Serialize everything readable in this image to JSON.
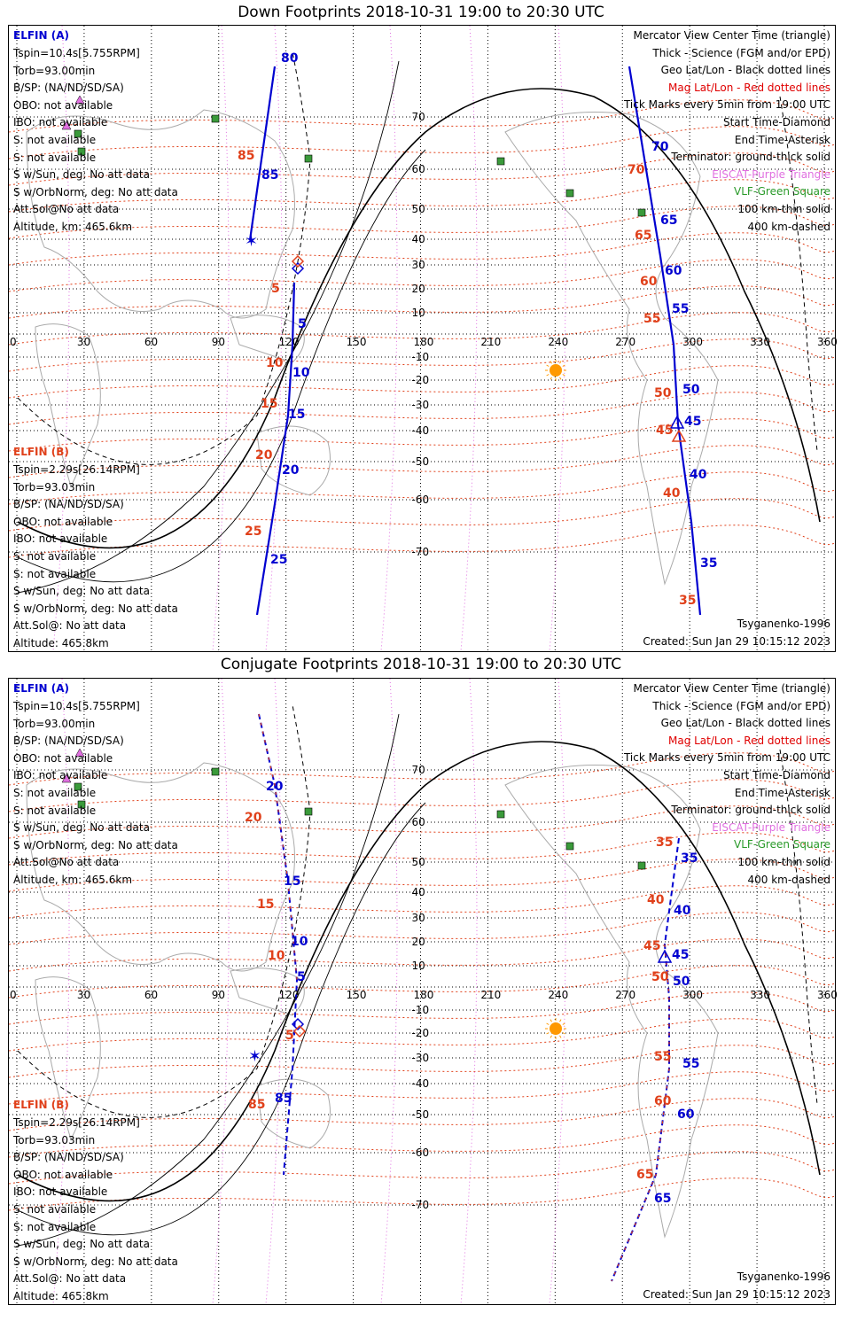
{
  "panels": [
    {
      "title": "Down Footprints 2018-10-31 19:00 to 20:30 UTC",
      "elfin_a": {
        "name": "ELFIN (A)",
        "lines": [
          "Tspin=10.4s[5.755RPM]",
          "Torb=93.00min",
          "B/SP: (NA/ND/SD/SA)",
          "OBO: not available",
          "IBO: not available",
          "S: not available",
          "S: not available",
          "S w/Sun, deg: No att data",
          "S w/OrbNorm, deg: No att data",
          "Att.Sol@No att data",
          "Altitude, km: 465.6km"
        ]
      },
      "elfin_b": {
        "name": "ELFIN (B)",
        "lines": [
          "Tspin=2.29s[26.14RPM]",
          "Torb=93.03min",
          "B/SP: (NA/ND/SD/SA)",
          "OBO: not available",
          "IBO: not available",
          "S: not available",
          "S: not available",
          "S w/Sun, deg: No att data",
          "S w/OrbNorm, deg: No att data",
          "Att.Sol@: No att data",
          "Altitude: 465.8km"
        ]
      },
      "legend": [
        "Mercator View Center Time (triangle)",
        "Thick - Science (FGM and/or EPD)",
        "Geo Lat/Lon - Black dotted lines",
        "Mag Lat/Lon - Red dotted lines",
        "Tick Marks every 5min from 19:00 UTC",
        "Start Time-Diamond",
        "End Time-Asterisk",
        "Terminator: ground-thick solid",
        "EISCAT-Purple Triangle",
        "VLF-Green Square",
        "100 km-thin solid",
        "400 km-dashed"
      ],
      "model": "Tsyganenko-1996",
      "created": "Created: Sun Jan 29 10:15:12 2023",
      "track_a_labels": [
        "80",
        "85",
        "5",
        "10",
        "15",
        "20",
        "25"
      ],
      "track_b_labels": [
        "85",
        "5",
        "10",
        "15",
        "20",
        "25"
      ],
      "track_a2_labels": [
        "70",
        "65",
        "60",
        "55",
        "50",
        "45",
        "40",
        "35"
      ],
      "track_b2_labels": [
        "70",
        "65",
        "60",
        "55",
        "50",
        "45",
        "40",
        "35"
      ]
    },
    {
      "title": "Conjugate Footprints 2018-10-31 19:00 to 20:30 UTC",
      "elfin_a": {
        "name": "ELFIN (A)",
        "lines": [
          "Tspin=10.4s[5.755RPM]",
          "Torb=93.00min",
          "B/SP: (NA/ND/SD/SA)",
          "OBO: not available",
          "IBO: not available",
          "S: not available",
          "S: not available",
          "S w/Sun, deg: No att data",
          "S w/OrbNorm, deg: No att data",
          "Att.Sol@No att data",
          "Altitude, km: 465.6km"
        ]
      },
      "elfin_b": {
        "name": "ELFIN (B)",
        "lines": [
          "Tspin=2.29s[26.14RPM]",
          "Torb=93.03min",
          "B/SP: (NA/ND/SD/SA)",
          "OBO: not available",
          "IBO: not available",
          "S: not available",
          "S: not available",
          "S w/Sun, deg: No att data",
          "S w/OrbNorm, deg: No att data",
          "Att.Sol@: No att data",
          "Altitude: 465.8km"
        ]
      },
      "legend": [
        "Mercator View Center Time (triangle)",
        "Thick - Science (FGM and/or EPD)",
        "Geo Lat/Lon - Black dotted lines",
        "Mag Lat/Lon - Red dotted lines",
        "Tick Marks every 5min from 19:00 UTC",
        "Start Time-Diamond",
        "End Time-Asterisk",
        "Terminator: ground-thick solid",
        "EISCAT-Purple Triangle",
        "VLF-Green Square",
        "100 km-thin solid",
        "400 km-dashed"
      ],
      "model": "Tsyganenko-1996",
      "created": "Created: Sun Jan 29 10:15:12 2023",
      "track_a_labels": [
        "20",
        "15",
        "10",
        "5",
        "85"
      ],
      "track_b_labels": [
        "20",
        "15",
        "10",
        "5",
        "85"
      ],
      "track_a2_labels": [
        "35",
        "40",
        "45",
        "50",
        "55",
        "60",
        "65"
      ],
      "track_b2_labels": [
        "35",
        "40",
        "45",
        "50",
        "55",
        "60",
        "65"
      ]
    }
  ],
  "lon_ticks": [
    "0",
    "30",
    "60",
    "90",
    "120",
    "150",
    "180",
    "210",
    "240",
    "270",
    "300",
    "330",
    "360"
  ],
  "lat_ticks": [
    "70",
    "60",
    "50",
    "40",
    "30",
    "20",
    "10",
    "-10",
    "-20",
    "-30",
    "-40",
    "-50",
    "-60",
    "-70"
  ],
  "colors": {
    "track": "#0000d0",
    "mag": "#e0401a",
    "eiscat": "#e070e0",
    "vlf": "#3a9a3a",
    "sun": "#ff9900"
  }
}
